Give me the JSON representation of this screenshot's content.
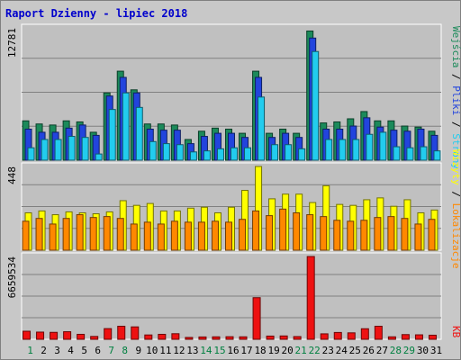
{
  "title": "Raport Dzienny -  lipiec 2018",
  "colors": {
    "background": "#c0c0c0",
    "frame": "#ffffff",
    "gridline": "#808080",
    "wejscia": "#1b8a5a",
    "pliki": "#2244dd",
    "strony": "#22ccee",
    "wizyty": "#ffff00",
    "lokalizacje": "#ff8800",
    "kb": "#ee1111",
    "day_weekday": "#000000",
    "day_weekend": "#008040"
  },
  "chart_data": [
    {
      "type": "bar",
      "name": "hits-panel",
      "max_label": "12781",
      "ylim": [
        0,
        12781
      ],
      "categories": [
        "1",
        "2",
        "3",
        "4",
        "5",
        "6",
        "7",
        "8",
        "9",
        "10",
        "11",
        "12",
        "13",
        "14",
        "15",
        "16",
        "17",
        "18",
        "19",
        "20",
        "21",
        "22",
        "23",
        "24",
        "25",
        "26",
        "27",
        "28",
        "29",
        "30",
        "31"
      ],
      "weekend_days": [
        "1",
        "7",
        "8",
        "14",
        "15",
        "21",
        "22",
        "28",
        "29"
      ],
      "series": [
        {
          "name": "Wejścia",
          "color_key": "wejscia",
          "values": [
            3800,
            3500,
            3400,
            3800,
            3700,
            2700,
            6500,
            8600,
            6800,
            3500,
            3500,
            3400,
            2000,
            2800,
            3100,
            3000,
            2600,
            8600,
            2600,
            3000,
            2600,
            12480,
            3600,
            3700,
            4000,
            4700,
            3800,
            3800,
            3300,
            3200,
            2800
          ]
        },
        {
          "name": "Pliki",
          "color_key": "pliki",
          "values": [
            3000,
            2700,
            2700,
            3100,
            3400,
            2400,
            6200,
            8000,
            6500,
            3000,
            2900,
            2900,
            1600,
            2300,
            2600,
            2600,
            2200,
            8000,
            2200,
            2600,
            2200,
            11800,
            3000,
            3000,
            3300,
            4100,
            3200,
            2900,
            2800,
            3000,
            2400
          ]
        },
        {
          "name": "Strony",
          "color_key": "strony",
          "values": [
            1200,
            2000,
            2000,
            2300,
            2200,
            600,
            4900,
            6500,
            5100,
            1800,
            1600,
            1500,
            800,
            900,
            1100,
            1200,
            1200,
            6100,
            1500,
            1500,
            1100,
            10500,
            2000,
            2000,
            2000,
            2500,
            2700,
            1300,
            1200,
            1300,
            900
          ]
        }
      ]
    },
    {
      "type": "bar",
      "name": "visits-panel",
      "max_label": "448",
      "ylim": [
        0,
        448
      ],
      "categories": [
        "1",
        "2",
        "3",
        "4",
        "5",
        "6",
        "7",
        "8",
        "9",
        "10",
        "11",
        "12",
        "13",
        "14",
        "15",
        "16",
        "17",
        "18",
        "19",
        "20",
        "21",
        "22",
        "23",
        "24",
        "25",
        "26",
        "27",
        "28",
        "29",
        "30",
        "31"
      ],
      "series": [
        {
          "name": "Wizyty",
          "color_key": "wizyty",
          "values": [
            200,
            210,
            190,
            205,
            200,
            195,
            205,
            265,
            240,
            250,
            210,
            210,
            225,
            230,
            200,
            230,
            320,
            448,
            275,
            300,
            300,
            255,
            345,
            245,
            240,
            270,
            280,
            235,
            270,
            200,
            215
          ]
        },
        {
          "name": "Lokalizacje",
          "color_key": "lokalizacje",
          "values": [
            155,
            170,
            140,
            170,
            190,
            175,
            180,
            170,
            140,
            150,
            140,
            155,
            150,
            150,
            155,
            150,
            165,
            210,
            185,
            220,
            200,
            190,
            180,
            160,
            155,
            160,
            175,
            180,
            170,
            140,
            165
          ]
        }
      ]
    },
    {
      "type": "bar",
      "name": "kb-panel",
      "max_label": "6659534",
      "ylim": [
        0,
        6659534
      ],
      "categories": [
        "1",
        "2",
        "3",
        "4",
        "5",
        "6",
        "7",
        "8",
        "9",
        "10",
        "11",
        "12",
        "13",
        "14",
        "15",
        "16",
        "17",
        "18",
        "19",
        "20",
        "21",
        "22",
        "23",
        "24",
        "25",
        "26",
        "27",
        "28",
        "29",
        "30",
        "31"
      ],
      "series": [
        {
          "name": "KB",
          "color_key": "kb",
          "values": [
            650000,
            580000,
            560000,
            610000,
            400000,
            230000,
            860000,
            1050000,
            1000000,
            350000,
            400000,
            450000,
            150000,
            190000,
            200000,
            210000,
            200000,
            3350000,
            260000,
            270000,
            220000,
            6659534,
            440000,
            550000,
            520000,
            850000,
            1050000,
            200000,
            380000,
            360000,
            330000
          ]
        }
      ]
    }
  ],
  "side_labels": {
    "hits": [
      {
        "text": "Wejścia",
        "color_key": "wejscia"
      },
      {
        "text": " / ",
        "color_key": "day_weekday"
      },
      {
        "text": "Pliki",
        "color_key": "pliki"
      },
      {
        "text": " / ",
        "color_key": "day_weekday"
      },
      {
        "text": "Strony",
        "color_key": "strony"
      }
    ],
    "visits": [
      {
        "text": "Wizyty",
        "color_key": "wizyty"
      },
      {
        "text": " / ",
        "color_key": "day_weekday"
      },
      {
        "text": "Lokalizacje",
        "color_key": "lokalizacje"
      }
    ],
    "kb": [
      {
        "text": "KB",
        "color_key": "kb"
      }
    ]
  }
}
